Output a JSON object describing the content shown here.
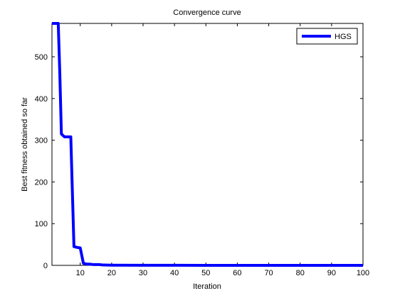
{
  "chart_data": {
    "type": "line",
    "title": "Convergence curve",
    "xlabel": "Iteration",
    "ylabel": "Best fitness obtained so far",
    "xlim": [
      1,
      100
    ],
    "ylim": [
      0,
      580
    ],
    "xticks": [
      10,
      20,
      30,
      40,
      50,
      60,
      70,
      80,
      90,
      100
    ],
    "yticks": [
      0,
      100,
      200,
      300,
      400,
      500
    ],
    "grid": false,
    "legend": "top-right",
    "series": [
      {
        "name": "HGS",
        "color": "#0000ff",
        "x": [
          1,
          2,
          3,
          3.5,
          4,
          5,
          6,
          7,
          8,
          9,
          10,
          11,
          12,
          13,
          14,
          15,
          16,
          17,
          20,
          30,
          40,
          50,
          60,
          70,
          80,
          90,
          100
        ],
        "y": [
          580,
          580,
          580,
          460,
          315,
          308,
          308,
          308,
          45,
          43,
          42,
          5,
          3,
          3,
          2,
          2,
          2,
          1,
          0.5,
          0.3,
          0.2,
          0.1,
          0.1,
          0.1,
          0.1,
          0.1,
          0.1
        ]
      }
    ]
  }
}
